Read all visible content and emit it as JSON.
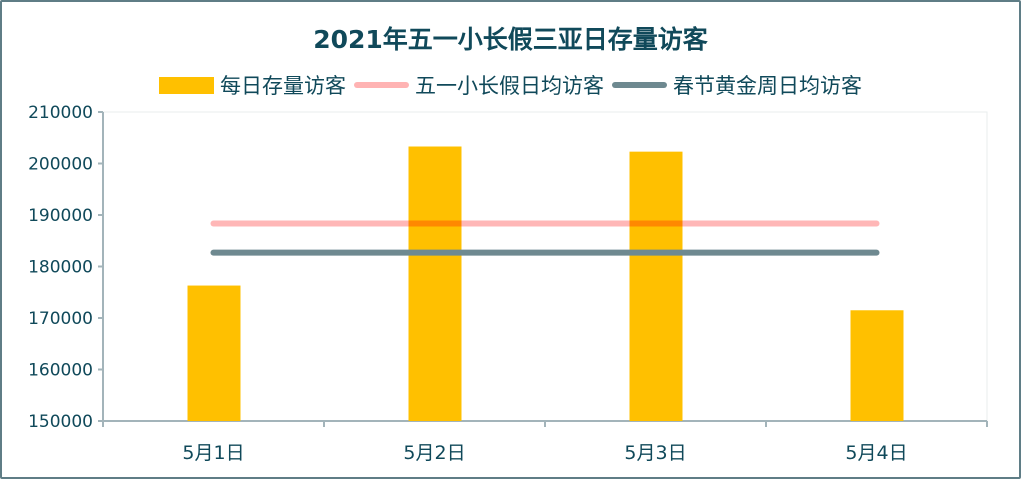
{
  "chart_data": {
    "type": "bar",
    "title": "2021年五一小长假三亚日存量访客",
    "categories": [
      "5月1日",
      "5月2日",
      "5月3日",
      "5月4日"
    ],
    "series": [
      {
        "name": "每日存量访客",
        "type": "bar",
        "color": "#ffc000",
        "values": [
          176300,
          203300,
          202300,
          171500
        ]
      },
      {
        "name": "五一小长假日均访客",
        "type": "line",
        "color": "#ffb3b3",
        "values": [
          188350,
          188350,
          188350,
          188350
        ]
      },
      {
        "name": "春节黄金周日均访客",
        "type": "line",
        "color": "#6e8990",
        "values": [
          182700,
          182700,
          182700,
          182700
        ]
      }
    ],
    "ylim": [
      150000,
      210000
    ],
    "yticks": [
      "150000",
      "160000",
      "170000",
      "180000",
      "190000",
      "200000",
      "210000"
    ],
    "legend": "top",
    "grid": false
  }
}
